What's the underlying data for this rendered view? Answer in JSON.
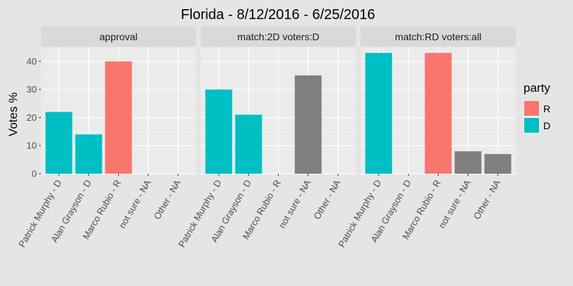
{
  "chart_data": {
    "type": "bar",
    "title": "Florida - 8/12/2016 - 6/25/2016",
    "xlabel": "",
    "ylabel": "Votes %",
    "ylim": [
      0,
      45
    ],
    "yticks": [
      0,
      10,
      20,
      30,
      40
    ],
    "grid": true,
    "categories": [
      "Patrick Murphy - D",
      "Alan Grayson - D",
      "Marco Rubio - R",
      "not sure - NA",
      "Other - NA"
    ],
    "legend": {
      "title": "party",
      "position": "right",
      "entries": [
        {
          "label": "R",
          "color": "#F8766D"
        },
        {
          "label": "D",
          "color": "#00BFC4"
        }
      ]
    },
    "na_color": "#7F7F7F",
    "panels": [
      {
        "strip": "approval",
        "values": [
          22,
          14,
          40,
          null,
          null
        ],
        "party": [
          "D",
          "D",
          "R",
          "NA",
          "NA"
        ]
      },
      {
        "strip": "match:2D     voters:D",
        "values": [
          30,
          21,
          null,
          35,
          null
        ],
        "party": [
          "D",
          "D",
          "R",
          "NA",
          "NA"
        ]
      },
      {
        "strip": "match:RD     voters:all",
        "values": [
          43,
          null,
          43,
          8,
          7
        ],
        "party": [
          "D",
          "D",
          "R",
          "NA",
          "NA"
        ]
      }
    ]
  }
}
